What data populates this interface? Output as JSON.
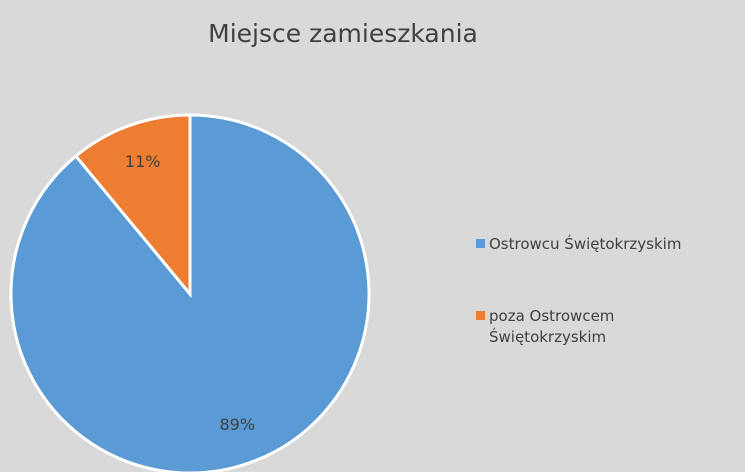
{
  "chart_data": {
    "type": "pie",
    "title": "Miejsce zamieszkania",
    "categories": [
      "Ostrowcu Świętokrzyskim",
      "poza Ostrowcem Świętokrzyskim"
    ],
    "values": [
      89,
      11
    ],
    "value_labels": [
      "89%",
      "11%"
    ],
    "colors": [
      "#5b9bd5",
      "#ed7d31"
    ],
    "legend": "right"
  }
}
